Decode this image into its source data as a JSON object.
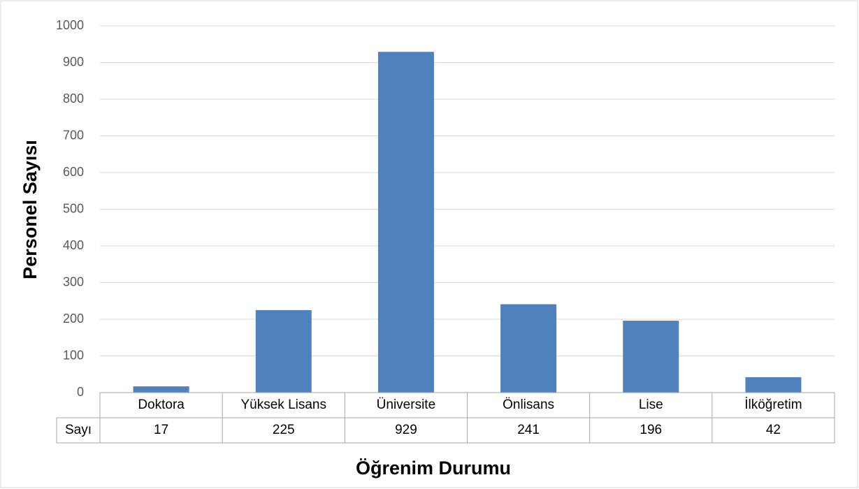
{
  "chart_data": {
    "type": "bar",
    "x_label": "Öğrenim Durumu",
    "y_label": "Personel Sayısı",
    "categories": [
      "Doktora",
      "Yüksek Lisans",
      "Üniversite",
      "Önlisans",
      "Lise",
      "İlköğretim"
    ],
    "series": [
      {
        "name": "Sayı",
        "color": "#4f81bd",
        "values": [
          17,
          225,
          929,
          241,
          196,
          42
        ]
      }
    ],
    "ylim": [
      0,
      1000
    ],
    "yticks": [
      0,
      100,
      200,
      300,
      400,
      500,
      600,
      700,
      800,
      900,
      1000
    ],
    "grid": true,
    "data_table": true
  }
}
